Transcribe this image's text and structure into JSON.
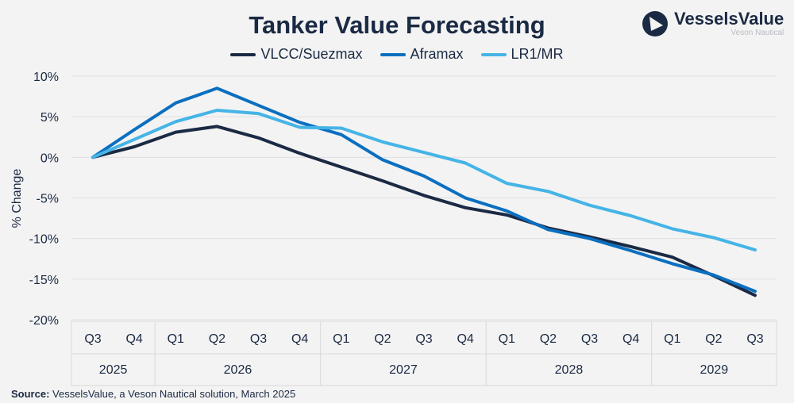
{
  "chart_data": {
    "type": "line",
    "title": "Tanker Value Forecasting",
    "ylabel": "% Change",
    "xlabel": "",
    "ylim": [
      -20,
      10
    ],
    "yticks": [
      10,
      5,
      0,
      -5,
      -10,
      -15,
      -20
    ],
    "ytick_labels": [
      "10%",
      "5%",
      "0%",
      "-5%",
      "-10%",
      "-15%",
      "-20%"
    ],
    "grid": true,
    "legend": "top",
    "categories": [
      "Q3",
      "Q4",
      "Q1",
      "Q2",
      "Q3",
      "Q4",
      "Q1",
      "Q2",
      "Q3",
      "Q4",
      "Q1",
      "Q2",
      "Q3",
      "Q4",
      "Q1",
      "Q2",
      "Q3"
    ],
    "year_groups": [
      {
        "label": "2025",
        "count": 2
      },
      {
        "label": "2026",
        "count": 4
      },
      {
        "label": "2027",
        "count": 4
      },
      {
        "label": "2028",
        "count": 4
      },
      {
        "label": "2029",
        "count": 3
      }
    ],
    "series": [
      {
        "name": "VLCC/Suezmax",
        "color": "#1b2a44",
        "values": [
          0,
          1.3,
          3.1,
          3.8,
          2.4,
          0.5,
          -1.2,
          -2.9,
          -4.7,
          -6.2,
          -7.1,
          -8.7,
          -9.8,
          -11.0,
          -12.3,
          -14.6,
          -17.0
        ]
      },
      {
        "name": "Aframax",
        "color": "#0b6fc0",
        "values": [
          0,
          3.4,
          6.7,
          8.5,
          6.4,
          4.3,
          2.8,
          -0.3,
          -2.3,
          -5.0,
          -6.6,
          -8.9,
          -10.0,
          -11.5,
          -13.1,
          -14.5,
          -16.5
        ]
      },
      {
        "name": "LR1/MR",
        "color": "#45b4e6",
        "values": [
          0,
          2.2,
          4.4,
          5.8,
          5.4,
          3.7,
          3.6,
          1.9,
          0.6,
          -0.7,
          -3.2,
          -4.2,
          -5.9,
          -7.2,
          -8.8,
          -9.9,
          -11.4
        ]
      }
    ]
  },
  "logo": {
    "name": "VesselsValue",
    "sub": "Veson Nautical",
    "color": "#1b2a44"
  },
  "source": {
    "label": "Source:",
    "text": " VesselsValue, a Veson Nautical solution, March 2025"
  }
}
